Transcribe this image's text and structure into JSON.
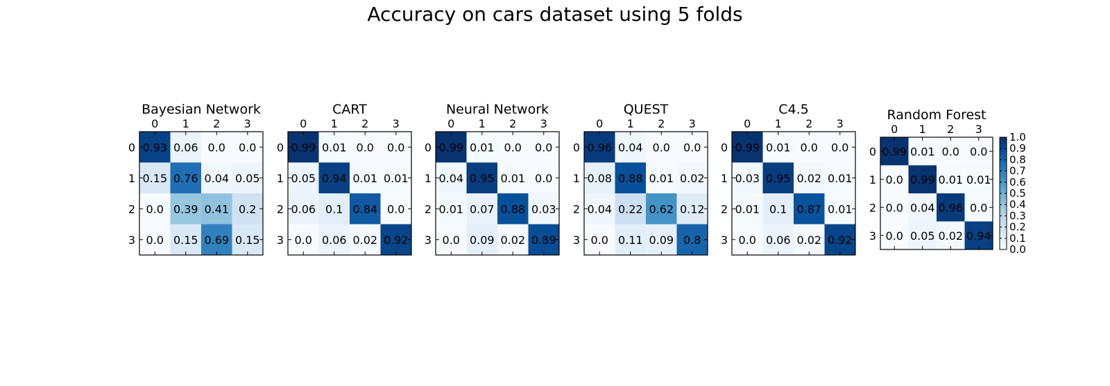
{
  "suptitle": "Accuracy on cars dataset using 5 folds",
  "colormap": {
    "name": "Blues",
    "low": "#f7fbff",
    "high": "#08306b",
    "ticks": [
      "0.0",
      "0.1",
      "0.2",
      "0.3",
      "0.4",
      "0.5",
      "0.6",
      "0.7",
      "0.8",
      "0.9",
      "1.0"
    ]
  },
  "chart_data": [
    {
      "type": "heatmap",
      "title": "Bayesian Network",
      "x_ticks": [
        "0",
        "1",
        "2",
        "3"
      ],
      "y_ticks": [
        "0",
        "1",
        "2",
        "3"
      ],
      "values": [
        [
          0.93,
          0.06,
          0.0,
          0.0
        ],
        [
          0.15,
          0.76,
          0.04,
          0.05
        ],
        [
          0.0,
          0.39,
          0.41,
          0.2
        ],
        [
          0.0,
          0.15,
          0.69,
          0.15
        ]
      ],
      "clim": [
        0,
        1
      ]
    },
    {
      "type": "heatmap",
      "title": "CART",
      "x_ticks": [
        "0",
        "1",
        "2",
        "3"
      ],
      "y_ticks": [
        "0",
        "1",
        "2",
        "3"
      ],
      "values": [
        [
          0.99,
          0.01,
          0.0,
          0.0
        ],
        [
          0.05,
          0.94,
          0.01,
          0.01
        ],
        [
          0.06,
          0.1,
          0.84,
          0.0
        ],
        [
          0.0,
          0.06,
          0.02,
          0.92
        ]
      ],
      "clim": [
        0,
        1
      ]
    },
    {
      "type": "heatmap",
      "title": "Neural Network",
      "x_ticks": [
        "0",
        "1",
        "2",
        "3"
      ],
      "y_ticks": [
        "0",
        "1",
        "2",
        "3"
      ],
      "values": [
        [
          0.99,
          0.01,
          0.0,
          0.0
        ],
        [
          0.04,
          0.95,
          0.01,
          0.0
        ],
        [
          0.01,
          0.07,
          0.88,
          0.03
        ],
        [
          0.0,
          0.09,
          0.02,
          0.89
        ]
      ],
      "clim": [
        0,
        1
      ]
    },
    {
      "type": "heatmap",
      "title": "QUEST",
      "x_ticks": [
        "0",
        "1",
        "2",
        "3"
      ],
      "y_ticks": [
        "0",
        "1",
        "2",
        "3"
      ],
      "values": [
        [
          0.96,
          0.04,
          0.0,
          0.0
        ],
        [
          0.08,
          0.88,
          0.01,
          0.02
        ],
        [
          0.04,
          0.22,
          0.62,
          0.12
        ],
        [
          0.0,
          0.11,
          0.09,
          0.8
        ]
      ],
      "clim": [
        0,
        1
      ]
    },
    {
      "type": "heatmap",
      "title": "C4.5",
      "x_ticks": [
        "0",
        "1",
        "2",
        "3"
      ],
      "y_ticks": [
        "0",
        "1",
        "2",
        "3"
      ],
      "values": [
        [
          0.99,
          0.01,
          0.0,
          0.0
        ],
        [
          0.03,
          0.95,
          0.02,
          0.01
        ],
        [
          0.01,
          0.1,
          0.87,
          0.01
        ],
        [
          0.0,
          0.06,
          0.02,
          0.92
        ]
      ],
      "clim": [
        0,
        1
      ]
    },
    {
      "type": "heatmap",
      "title": "Random Forest",
      "x_ticks": [
        "0",
        "1",
        "2",
        "3"
      ],
      "y_ticks": [
        "0",
        "1",
        "2",
        "3"
      ],
      "values": [
        [
          0.99,
          0.01,
          0.0,
          0.0
        ],
        [
          0.0,
          0.99,
          0.01,
          0.01
        ],
        [
          0.0,
          0.04,
          0.96,
          0.0
        ],
        [
          0.0,
          0.05,
          0.02,
          0.94
        ]
      ],
      "clim": [
        0,
        1
      ],
      "colorbar": true
    }
  ]
}
